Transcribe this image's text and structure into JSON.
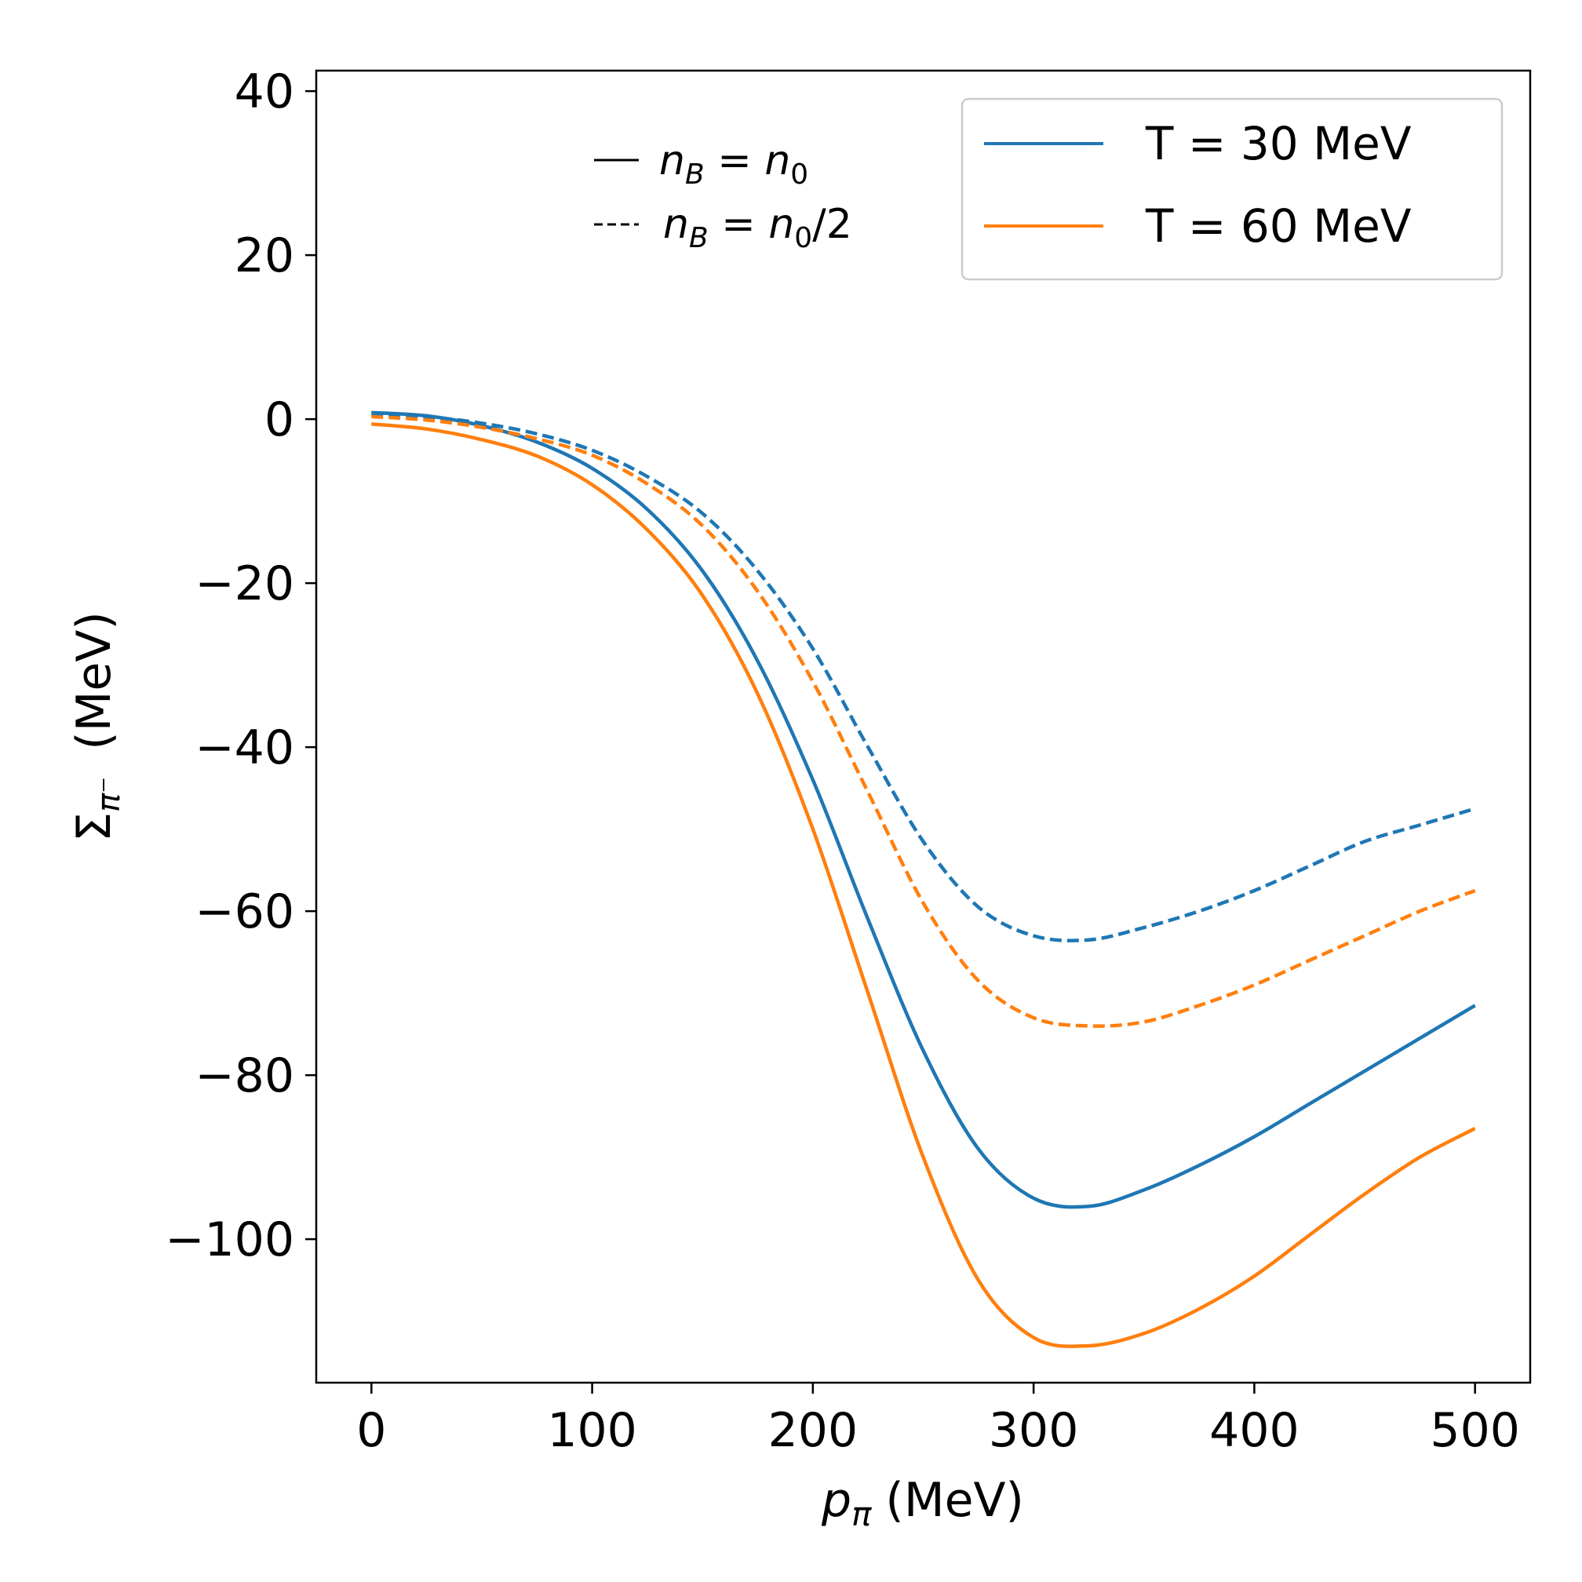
{
  "chart_data": {
    "type": "line",
    "xlabel": "p_π (MeV)",
    "xlabel_main": "p",
    "xlabel_sub": "π",
    "xlabel_unit": "(MeV)",
    "ylabel": "Σ_π⁻  (MeV)",
    "ylabel_main": "Σ",
    "ylabel_sub": "π⁻",
    "ylabel_unit": "(MeV)",
    "xlim": [
      -25,
      525
    ],
    "ylim": [
      -117.5,
      42.5
    ],
    "xticks": [
      0,
      100,
      200,
      300,
      400,
      500
    ],
    "xtick_labels": [
      "0",
      "100",
      "200",
      "300",
      "400",
      "500"
    ],
    "yticks": [
      40,
      20,
      0,
      -20,
      -40,
      -60,
      -80,
      -100
    ],
    "ytick_labels": [
      "40",
      "20",
      "0",
      "−20",
      "−40",
      "−60",
      "−80",
      "−100"
    ],
    "grid": false,
    "legend": {
      "placement": "top-right",
      "entries": [
        {
          "label": "T = 30 MeV",
          "color": "#1f77b4"
        },
        {
          "label": "T = 60 MeV",
          "color": "#ff7f0e"
        }
      ]
    },
    "annotations": [
      {
        "line_style": "solid",
        "symbol": "—",
        "label": "n_B = n_0",
        "main": "n",
        "sub": "B",
        "rhs_main": "n",
        "rhs_sub": "0",
        "rhs_tail": ""
      },
      {
        "line_style": "dashed",
        "symbol": "---",
        "label": "n_B = n_0/2",
        "main": "n",
        "sub": "B",
        "rhs_main": "n",
        "rhs_sub": "0",
        "rhs_tail": "/2"
      }
    ],
    "x": [
      0,
      25,
      50,
      75,
      100,
      125,
      150,
      175,
      200,
      225,
      250,
      275,
      300,
      325,
      350,
      375,
      400,
      425,
      450,
      475,
      500
    ],
    "series": [
      {
        "name": "T = 30 MeV, n_B = n_0",
        "color": "#1f77b4",
        "dash": "solid",
        "values": [
          0.8,
          0.4,
          -0.8,
          -2.8,
          -6.0,
          -11.0,
          -18.5,
          -29.5,
          -44.0,
          -61.0,
          -77.0,
          -89.0,
          -95.0,
          -96.0,
          -94.0,
          -91.0,
          -87.5,
          -83.5,
          -79.5,
          -75.5,
          -71.5
        ]
      },
      {
        "name": "T = 60 MeV, n_B = n_0",
        "color": "#ff7f0e",
        "dash": "solid",
        "values": [
          -0.6,
          -1.2,
          -2.5,
          -4.5,
          -8.0,
          -13.5,
          -21.5,
          -33.5,
          -50.0,
          -70.0,
          -90.0,
          -105.0,
          -112.0,
          -113.0,
          -111.5,
          -108.5,
          -104.5,
          -99.5,
          -94.5,
          -90.0,
          -86.5
        ]
      },
      {
        "name": "T = 30 MeV, n_B = n_0/2",
        "color": "#1f77b4",
        "dash": "dashed",
        "values": [
          0.6,
          0.3,
          -0.5,
          -1.8,
          -3.8,
          -7.0,
          -11.5,
          -18.5,
          -28.0,
          -40.0,
          -51.5,
          -59.5,
          -63.0,
          -63.5,
          -62.0,
          -60.0,
          -57.5,
          -54.5,
          -51.5,
          -49.5,
          -47.5
        ]
      },
      {
        "name": "T = 60 MeV, n_B = n_0/2",
        "color": "#ff7f0e",
        "dash": "dashed",
        "values": [
          0.3,
          -0.1,
          -1.0,
          -2.4,
          -4.4,
          -7.9,
          -13.0,
          -21.0,
          -32.0,
          -45.5,
          -59.0,
          -68.5,
          -73.0,
          -74.0,
          -73.5,
          -71.5,
          -69.0,
          -66.0,
          -63.0,
          -60.0,
          -57.5
        ]
      }
    ]
  }
}
